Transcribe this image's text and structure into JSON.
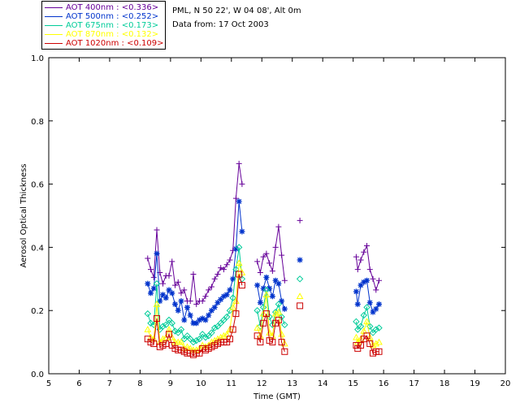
{
  "info": {
    "site": "PML, N 50 22', W 04 08', Alt 0m",
    "date": "Data from: 17 Oct 2003"
  },
  "chart_data": {
    "type": "line",
    "xlabel": "Time (GMT)",
    "ylabel": "Aerosol Optical Thickness",
    "xlim": [
      5,
      20
    ],
    "ylim": [
      0,
      1
    ],
    "xticks": [
      "5",
      "6",
      "7",
      "8",
      "9",
      "10",
      "11",
      "12",
      "13",
      "14",
      "15",
      "16",
      "17",
      "18",
      "19",
      "20"
    ],
    "yticks": [
      "0.0",
      "0.2",
      "0.4",
      "0.6",
      "0.8",
      "1.0"
    ],
    "grid": false,
    "legend": "top-left",
    "x": [
      8.25,
      8.35,
      8.45,
      8.55,
      8.65,
      8.75,
      8.85,
      8.95,
      9.05,
      9.15,
      9.25,
      9.35,
      9.45,
      9.55,
      9.65,
      9.75,
      9.85,
      9.95,
      10.05,
      10.15,
      10.25,
      10.35,
      10.45,
      10.55,
      10.65,
      10.75,
      10.85,
      10.95,
      11.05,
      11.15,
      11.25,
      11.35,
      11.85,
      11.95,
      12.05,
      12.15,
      12.25,
      12.35,
      12.45,
      12.55,
      12.65,
      12.75,
      13.25,
      15.1,
      15.15,
      15.25,
      15.35,
      15.45,
      15.55,
      15.65,
      15.75,
      15.85
    ],
    "series": [
      {
        "name": "AOT 400nm : <0.336>",
        "color": "#660099",
        "marker": "plus",
        "values": [
          0.365,
          0.33,
          0.305,
          0.455,
          0.32,
          0.285,
          0.31,
          0.31,
          0.355,
          0.28,
          0.29,
          0.255,
          0.265,
          0.23,
          0.23,
          0.315,
          0.22,
          0.23,
          0.23,
          0.245,
          0.265,
          0.275,
          0.3,
          0.315,
          0.335,
          0.33,
          0.345,
          0.36,
          0.39,
          0.555,
          0.665,
          0.6,
          0.355,
          0.32,
          0.37,
          0.38,
          0.35,
          0.325,
          0.4,
          0.465,
          0.375,
          0.295,
          0.485,
          0.37,
          0.33,
          0.36,
          0.385,
          0.405,
          0.33,
          0.3,
          0.265,
          0.295
        ]
      },
      {
        "name": "AOT 500nm : <0.252>",
        "color": "#0033cc",
        "marker": "asterisk",
        "values": [
          0.285,
          0.255,
          0.27,
          0.38,
          0.23,
          0.25,
          0.24,
          0.265,
          0.255,
          0.22,
          0.2,
          0.23,
          0.17,
          0.21,
          0.185,
          0.16,
          0.16,
          0.17,
          0.175,
          0.17,
          0.185,
          0.2,
          0.21,
          0.225,
          0.235,
          0.245,
          0.25,
          0.265,
          0.3,
          0.395,
          0.545,
          0.45,
          0.28,
          0.225,
          0.27,
          0.305,
          0.27,
          0.245,
          0.295,
          0.285,
          0.23,
          0.205,
          0.36,
          0.26,
          0.22,
          0.28,
          0.29,
          0.295,
          0.225,
          0.195,
          0.205,
          0.22
        ]
      },
      {
        "name": "AOT 675nm : <0.173>",
        "color": "#00cc99",
        "marker": "diamond",
        "values": [
          0.19,
          0.16,
          0.155,
          0.285,
          0.14,
          0.15,
          0.155,
          0.17,
          0.16,
          0.135,
          0.13,
          0.14,
          0.11,
          0.12,
          0.11,
          0.1,
          0.105,
          0.11,
          0.125,
          0.115,
          0.12,
          0.13,
          0.145,
          0.15,
          0.16,
          0.17,
          0.18,
          0.2,
          0.24,
          0.33,
          0.4,
          0.3,
          0.2,
          0.15,
          0.21,
          0.265,
          0.18,
          0.155,
          0.195,
          0.22,
          0.18,
          0.155,
          0.3,
          0.165,
          0.14,
          0.15,
          0.185,
          0.21,
          0.15,
          0.13,
          0.14,
          0.145
        ]
      },
      {
        "name": "AOT 870nm : <0.132>",
        "color": "#ffff00",
        "marker": "triangle",
        "values": [
          0.14,
          0.115,
          0.11,
          0.22,
          0.1,
          0.11,
          0.115,
          0.14,
          0.115,
          0.1,
          0.1,
          0.1,
          0.08,
          0.085,
          0.08,
          0.075,
          0.075,
          0.08,
          0.09,
          0.085,
          0.09,
          0.1,
          0.105,
          0.11,
          0.115,
          0.12,
          0.125,
          0.14,
          0.21,
          0.23,
          0.35,
          0.32,
          0.145,
          0.12,
          0.19,
          0.25,
          0.13,
          0.12,
          0.19,
          0.195,
          0.125,
          0.095,
          0.245,
          0.115,
          0.1,
          0.11,
          0.135,
          0.165,
          0.115,
          0.09,
          0.095,
          0.1
        ]
      },
      {
        "name": "AOT 1020nm : <0.109>",
        "color": "#cc0000",
        "marker": "square",
        "values": [
          0.11,
          0.1,
          0.095,
          0.175,
          0.085,
          0.09,
          0.095,
          0.125,
          0.09,
          0.08,
          0.075,
          0.075,
          0.07,
          0.065,
          0.065,
          0.06,
          0.065,
          0.065,
          0.08,
          0.075,
          0.08,
          0.085,
          0.09,
          0.095,
          0.1,
          0.1,
          0.1,
          0.11,
          0.14,
          0.19,
          0.315,
          0.28,
          0.12,
          0.1,
          0.16,
          0.19,
          0.105,
          0.1,
          0.16,
          0.17,
          0.1,
          0.07,
          0.215,
          0.09,
          0.08,
          0.09,
          0.11,
          0.12,
          0.095,
          0.065,
          0.07,
          0.07
        ]
      }
    ]
  }
}
